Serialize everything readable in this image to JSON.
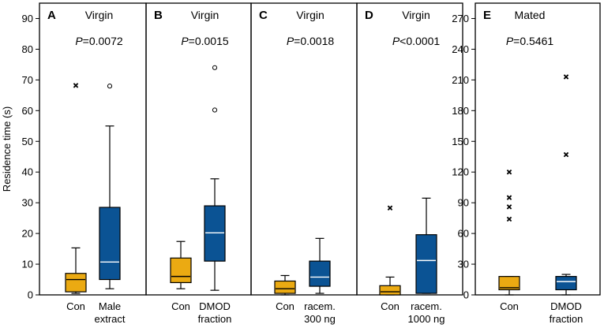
{
  "chart_data": {
    "type": "box",
    "ylabel": "Residence time (s)",
    "colors": {
      "con": "#EBAA12",
      "treatment": "#0B5394",
      "median_on_dark": "#ffffff",
      "median_on_light": "#000000"
    },
    "panels": [
      {
        "letter": "A",
        "condition": "Virgin",
        "p_prefix": "P",
        "p_rest": "=0.0072",
        "ylim": [
          0,
          95
        ],
        "ticks": [
          0,
          10,
          20,
          30,
          40,
          50,
          60,
          70,
          80,
          90
        ],
        "boxes": [
          {
            "label": [
              "Con"
            ],
            "group": "con",
            "whislo": 0.5,
            "q1": 1,
            "med": 5,
            "q3": 7,
            "whishi": 15.3,
            "outliers": [
              {
                "y": 68.2,
                "marker": "x"
              }
            ]
          },
          {
            "label": [
              "Male",
              "extract"
            ],
            "group": "treatment",
            "whislo": 2,
            "q1": 5,
            "med": 10.7,
            "q3": 28.5,
            "whishi": 55,
            "outliers": [
              {
                "y": 68,
                "marker": "o"
              }
            ]
          }
        ]
      },
      {
        "letter": "B",
        "condition": "Virgin",
        "p_prefix": "P",
        "p_rest": "=0.0015",
        "ylim": [
          0,
          95
        ],
        "ticks": [],
        "boxes": [
          {
            "label": [
              "Con"
            ],
            "group": "con",
            "whislo": 2,
            "q1": 4,
            "med": 6,
            "q3": 12,
            "whishi": 17.4,
            "outliers": []
          },
          {
            "label": [
              "DMOD",
              "fraction"
            ],
            "group": "treatment",
            "whislo": 1.5,
            "q1": 11,
            "med": 20.2,
            "q3": 29,
            "whishi": 37.8,
            "outliers": [
              {
                "y": 74,
                "marker": "o"
              },
              {
                "y": 60.2,
                "marker": "o"
              }
            ]
          }
        ]
      },
      {
        "letter": "C",
        "condition": "Virgin",
        "p_prefix": "P",
        "p_rest": "=0.0018",
        "ylim": [
          0,
          95
        ],
        "ticks": [],
        "boxes": [
          {
            "label": [
              "Con"
            ],
            "group": "con",
            "whislo": 0,
            "q1": 0.5,
            "med": 2,
            "q3": 4.5,
            "whishi": 6.3,
            "outliers": []
          },
          {
            "label": [
              "racem.",
              "300 ng"
            ],
            "group": "treatment",
            "whislo": 0.5,
            "q1": 2.8,
            "med": 5.8,
            "q3": 11,
            "whishi": 18.4,
            "outliers": []
          }
        ]
      },
      {
        "letter": "D",
        "condition": "Virgin",
        "p_prefix": "P",
        "p_rest": "<0.0001",
        "ylim": [
          0,
          95
        ],
        "ticks": [],
        "boxes": [
          {
            "label": [
              "Con"
            ],
            "group": "con",
            "whislo": 0,
            "q1": 0,
            "med": 1,
            "q3": 3,
            "whishi": 5.8,
            "outliers": [
              {
                "y": 28.3,
                "marker": "x"
              }
            ]
          },
          {
            "label": [
              "racem.",
              "1000 ng"
            ],
            "group": "treatment",
            "whislo": 0.5,
            "q1": 0.5,
            "med": 11.2,
            "q3": 19.6,
            "whishi": 31.5,
            "outliers": []
          }
        ]
      },
      {
        "letter": "E",
        "condition": "Mated",
        "p_prefix": "P",
        "p_rest": "=0.5461",
        "ylim": [
          0,
          285
        ],
        "ticks": [
          0,
          30,
          60,
          90,
          120,
          150,
          180,
          210,
          240,
          270
        ],
        "boxes": [
          {
            "label": [
              "Con"
            ],
            "group": "con",
            "whislo": 0,
            "q1": 5,
            "med": 7,
            "q3": 18,
            "whishi": 18,
            "outliers": [
              {
                "y": 120,
                "marker": "x"
              },
              {
                "y": 95,
                "marker": "x"
              },
              {
                "y": 86,
                "marker": "x"
              },
              {
                "y": 74,
                "marker": "x"
              }
            ]
          },
          {
            "label": [
              "DMOD",
              "fraction"
            ],
            "group": "treatment",
            "whislo": 0,
            "q1": 5,
            "med": 13,
            "q3": 18,
            "whishi": 20,
            "outliers": [
              {
                "y": 213,
                "marker": "x"
              },
              {
                "y": 137,
                "marker": "x"
              }
            ]
          }
        ]
      }
    ]
  }
}
